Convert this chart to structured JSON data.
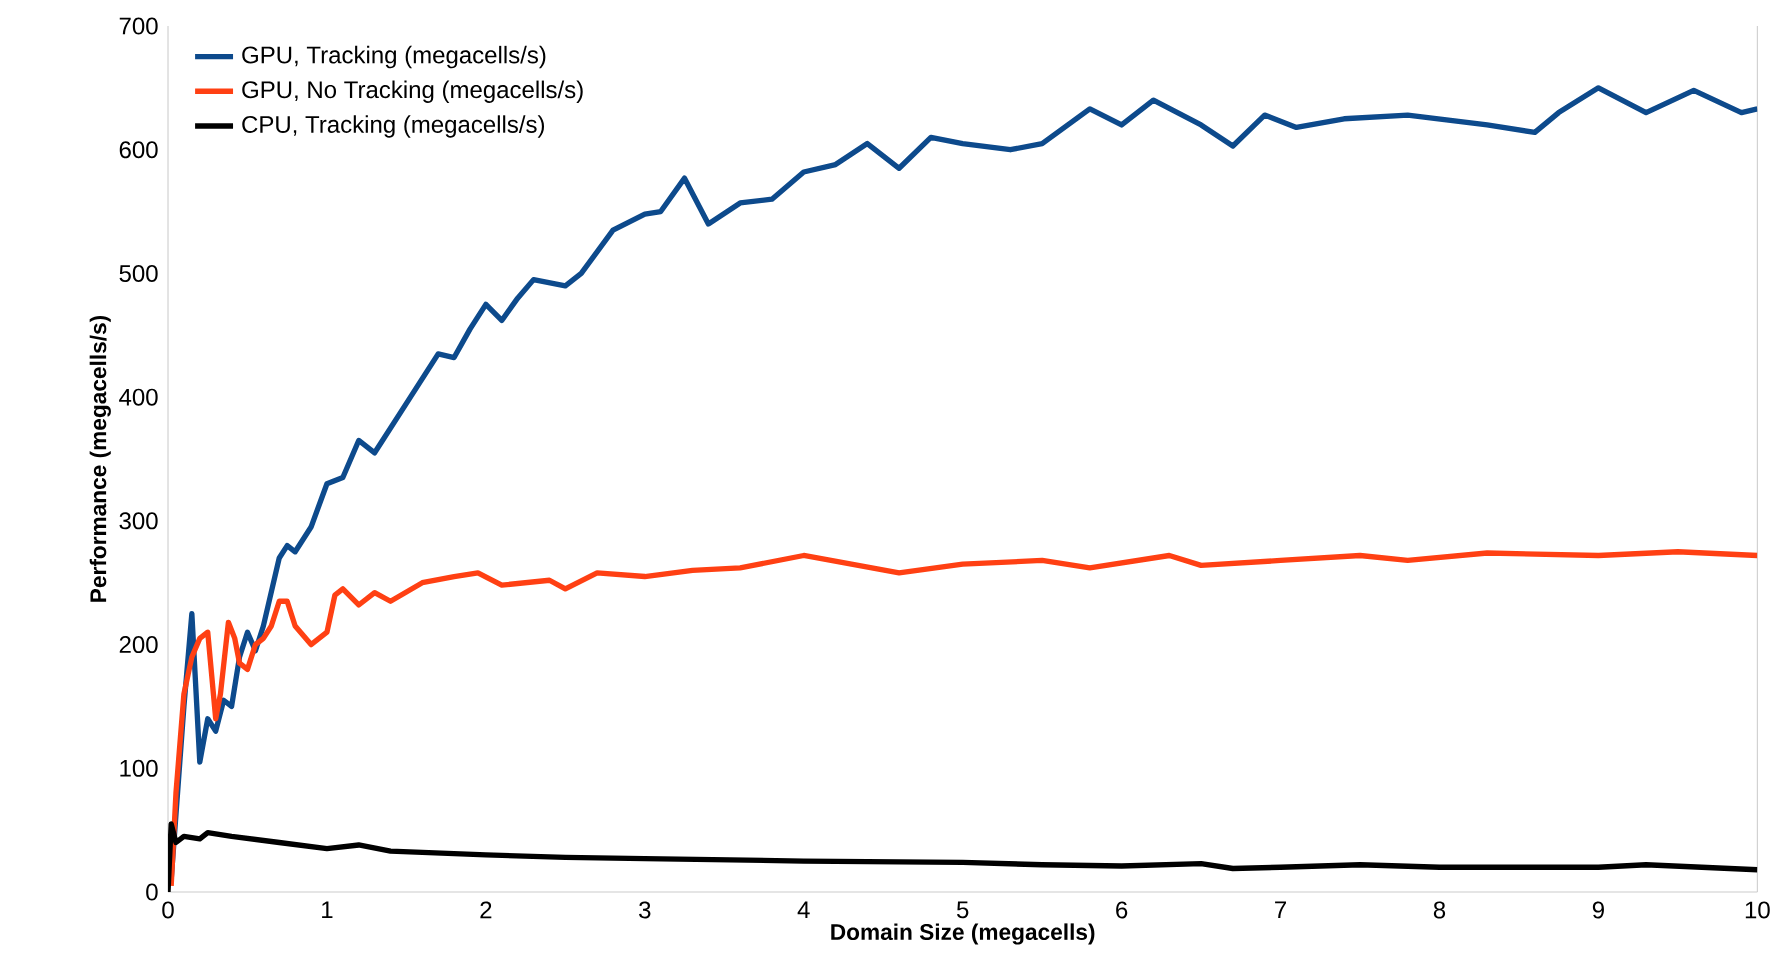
{
  "chart_data": {
    "type": "line",
    "xlabel": "Domain Size (megacells)",
    "ylabel": "Performance (megacells/s)",
    "xlim": [
      0,
      10
    ],
    "xticks": [
      0,
      1,
      2,
      3,
      4,
      5,
      6,
      7,
      8,
      9,
      10
    ],
    "ylim": [
      0,
      700
    ],
    "yticks": [
      0,
      100,
      200,
      300,
      400,
      500,
      600,
      700
    ],
    "legend": "top left",
    "grid": false,
    "series": [
      {
        "name": "GPU, Tracking (megacells/s)",
        "color": "#0d4a8c",
        "x": [
          0.02,
          0.1,
          0.15,
          0.2,
          0.25,
          0.3,
          0.35,
          0.4,
          0.45,
          0.5,
          0.55,
          0.6,
          0.7,
          0.75,
          0.8,
          0.9,
          1,
          1.1,
          1.2,
          1.3,
          1.4,
          1.5,
          1.6,
          1.7,
          1.8,
          1.9,
          2,
          2.1,
          2.2,
          2.3,
          2.5,
          2.6,
          2.8,
          3,
          3.1,
          3.25,
          3.4,
          3.6,
          3.8,
          4,
          4.2,
          4.4,
          4.6,
          4.8,
          5,
          5.3,
          5.5,
          5.8,
          6,
          6.2,
          6.5,
          6.7,
          6.9,
          7.1,
          7.4,
          7.8,
          8.3,
          8.6,
          8.75,
          9,
          9.3,
          9.6,
          9.9,
          10
        ],
        "values": [
          10,
          150,
          225,
          105,
          140,
          130,
          155,
          150,
          190,
          210,
          195,
          215,
          270,
          280,
          275,
          295,
          330,
          335,
          365,
          355,
          375,
          395,
          415,
          435,
          432,
          455,
          475,
          462,
          480,
          495,
          490,
          500,
          535,
          548,
          550,
          577,
          540,
          557,
          560,
          582,
          588,
          605,
          585,
          610,
          605,
          600,
          605,
          633,
          620,
          640,
          620,
          603,
          628,
          618,
          625,
          628,
          620,
          614,
          630,
          650,
          630,
          648,
          630,
          633
        ]
      },
      {
        "name": "GPU, No Tracking (megacells/s)",
        "color": "#ff4013",
        "x": [
          0.02,
          0.05,
          0.1,
          0.15,
          0.2,
          0.25,
          0.3,
          0.33,
          0.38,
          0.42,
          0.45,
          0.5,
          0.55,
          0.6,
          0.65,
          0.7,
          0.75,
          0.8,
          0.9,
          1,
          1.05,
          1.1,
          1.2,
          1.3,
          1.4,
          1.6,
          1.8,
          1.95,
          2.1,
          2.4,
          2.5,
          2.7,
          3,
          3.3,
          3.6,
          4,
          4.3,
          4.6,
          5,
          5.5,
          5.8,
          6.3,
          6.5,
          7,
          7.5,
          7.8,
          8.3,
          9,
          9.5,
          10
        ],
        "values": [
          5,
          80,
          160,
          190,
          205,
          210,
          140,
          160,
          218,
          205,
          185,
          180,
          200,
          205,
          215,
          235,
          235,
          215,
          200,
          210,
          240,
          245,
          232,
          242,
          235,
          250,
          255,
          258,
          248,
          252,
          245,
          258,
          255,
          260,
          262,
          272,
          265,
          258,
          265,
          268,
          262,
          272,
          264,
          268,
          272,
          268,
          274,
          272,
          275,
          272
        ]
      },
      {
        "name": "CPU, Tracking (megacells/s)",
        "color": "#000000",
        "x": [
          0,
          0.02,
          0.05,
          0.1,
          0.2,
          0.25,
          0.4,
          0.7,
          1,
          1.2,
          1.4,
          1.6,
          2,
          2.5,
          3,
          4,
          5,
          5.5,
          6,
          6.5,
          6.7,
          7,
          7.5,
          8,
          9,
          9.3,
          10
        ],
        "values": [
          0,
          55,
          40,
          45,
          43,
          48,
          45,
          40,
          35,
          38,
          33,
          32,
          30,
          28,
          27,
          25,
          24,
          22,
          21,
          23,
          19,
          20,
          22,
          20,
          20,
          22,
          18
        ]
      }
    ]
  }
}
